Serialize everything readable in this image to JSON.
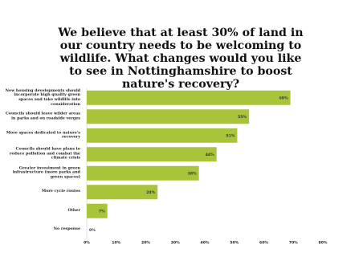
{
  "chart_data": {
    "type": "barh",
    "title": "We believe that at least 30% of land in our country needs to be welcoming to wildlife. What changes would you like to see in Nottinghamshire to boost nature's recovery?",
    "categories": [
      "New housing developments should incorporate high quality green spaces and take wildlife into consideration",
      "Councils should leave wilder areas in parks and on roadside verges",
      "More spaces dedicated to nature's recovery",
      "Councils should have plans to reduce pollution and combat the climate crisis",
      "Greater investment in green infrastructure (more parks and green spaces)",
      "More cycle routes",
      "Other",
      "No response"
    ],
    "values": [
      69,
      55,
      51,
      44,
      38,
      24,
      7,
      0
    ],
    "value_labels": [
      "69%",
      "55%",
      "51%",
      "44%",
      "38%",
      "24%",
      "7%",
      "0%"
    ],
    "color": "#a8c43a",
    "xlim": [
      0,
      80
    ],
    "xticks": [
      {
        "value": 0,
        "label": "0%"
      },
      {
        "value": 10,
        "label": "10%"
      },
      {
        "value": 20,
        "label": "20%"
      },
      {
        "value": 30,
        "label": "30%"
      },
      {
        "value": 40,
        "label": "40%"
      },
      {
        "value": 50,
        "label": "50%"
      },
      {
        "value": 60,
        "label": "60%"
      },
      {
        "value": 70,
        "label": "70%"
      },
      {
        "value": 80,
        "label": "80%"
      }
    ]
  }
}
